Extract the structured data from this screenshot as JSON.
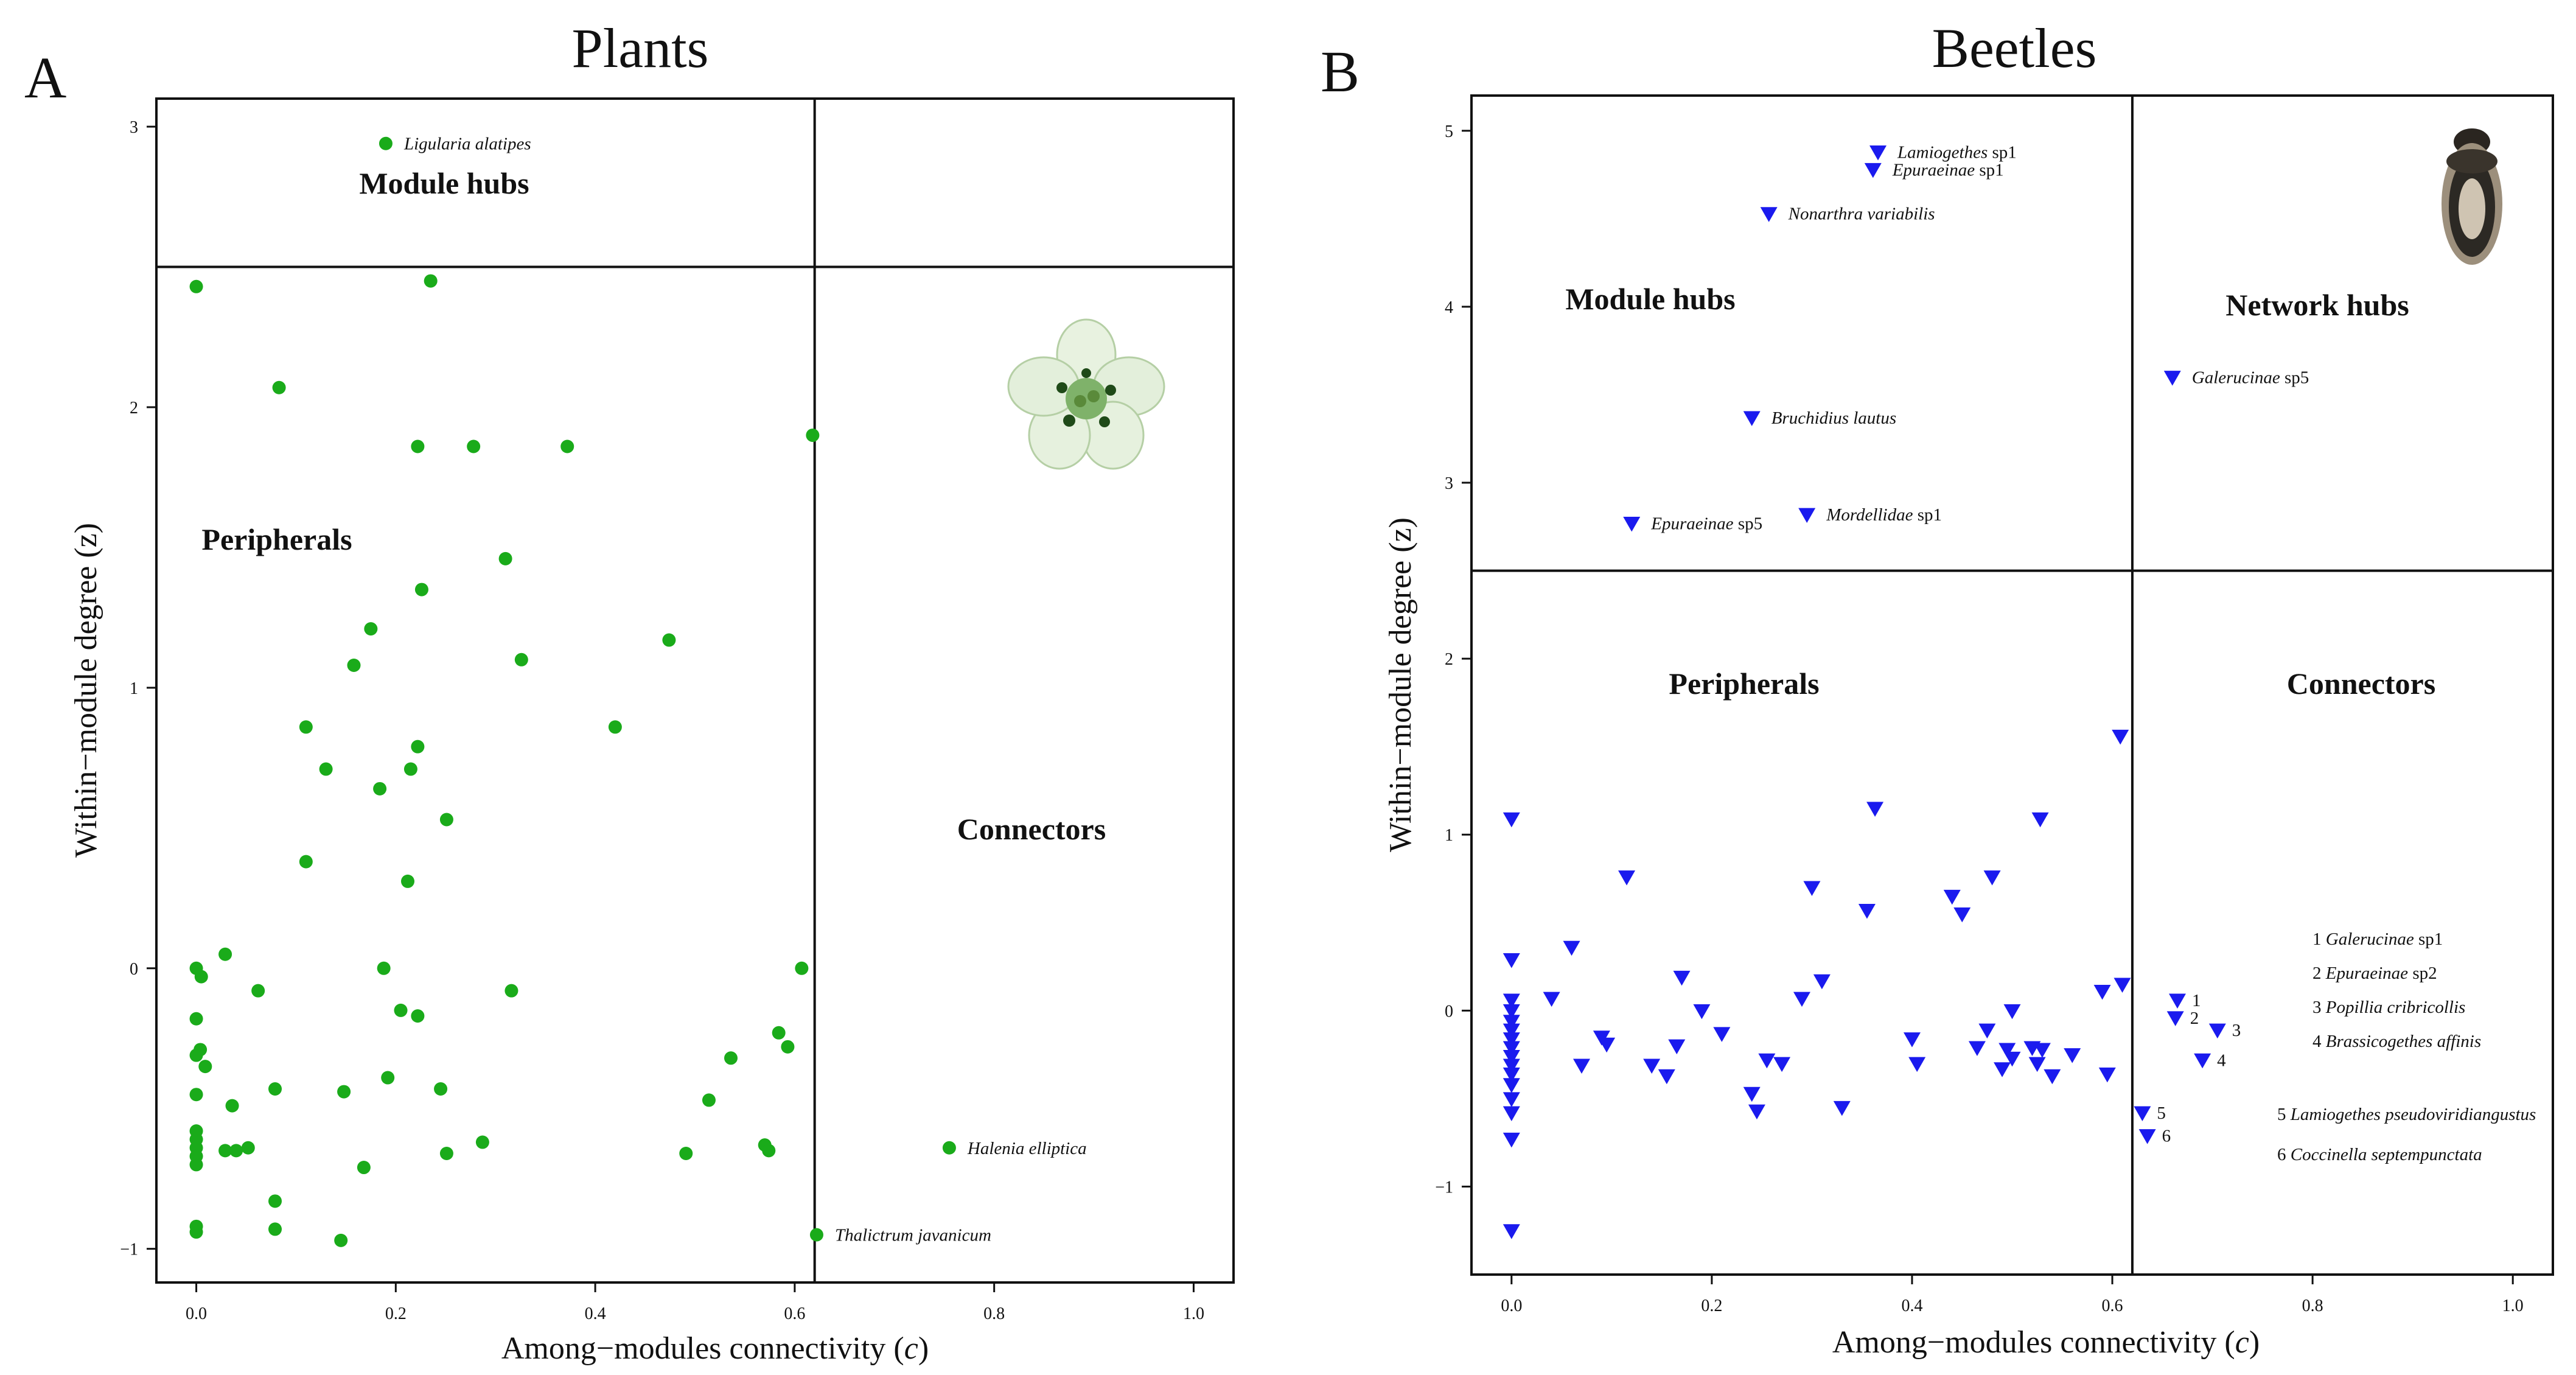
{
  "figure": {
    "xlabel": "Among−modules connectivity (",
    "xlabel_var": "c",
    "xlabel_close": ")",
    "ylabel": "Within−module degree (z)",
    "colors": {
      "plants": "#1aab1a",
      "beetles": "#1a1aee",
      "frame": "#111111"
    }
  },
  "chart_data": [
    {
      "panel": "A",
      "title": "Plants",
      "type": "scatter",
      "marker": "circle",
      "xlim": [
        -0.04,
        1.04
      ],
      "ylim": [
        -1.12,
        3.1
      ],
      "x_ticks": [
        "0.0",
        "0.2",
        "0.4",
        "0.6",
        "0.8",
        "1.0"
      ],
      "y_ticks": [
        "−1",
        "0",
        "1",
        "2",
        "3"
      ],
      "y_tick_values": [
        -1,
        0,
        1,
        2,
        3
      ],
      "x_tick_values": [
        0,
        0.2,
        0.4,
        0.6,
        0.8,
        1.0
      ],
      "threshold_x": 0.62,
      "threshold_y": 2.5,
      "regions": [
        "Module hubs",
        "Peripherals",
        "Connectors"
      ],
      "labeled_points": [
        {
          "name": "Ligularia alatipes",
          "x": 0.19,
          "y": 2.94
        },
        {
          "name": "Halenia elliptica",
          "x": 0.755,
          "y": -0.64
        },
        {
          "name": "Thalictrum javanicum",
          "x": 0.622,
          "y": -0.95
        }
      ],
      "points": [
        [
          0.0,
          2.43
        ],
        [
          0.235,
          2.45
        ],
        [
          0.083,
          2.07
        ],
        [
          0.222,
          1.86
        ],
        [
          0.278,
          1.86
        ],
        [
          0.372,
          1.86
        ],
        [
          0.618,
          1.9
        ],
        [
          0.31,
          1.46
        ],
        [
          0.226,
          1.35
        ],
        [
          0.175,
          1.21
        ],
        [
          0.474,
          1.17
        ],
        [
          0.158,
          1.08
        ],
        [
          0.326,
          1.1
        ],
        [
          0.11,
          0.86
        ],
        [
          0.42,
          0.86
        ],
        [
          0.222,
          0.79
        ],
        [
          0.13,
          0.71
        ],
        [
          0.215,
          0.71
        ],
        [
          0.184,
          0.64
        ],
        [
          0.251,
          0.53
        ],
        [
          0.11,
          0.38
        ],
        [
          0.212,
          0.31
        ],
        [
          0.0,
          0.0
        ],
        [
          0.005,
          -0.03
        ],
        [
          0.029,
          0.05
        ],
        [
          0.188,
          0.0
        ],
        [
          0.607,
          0.0
        ],
        [
          0.062,
          -0.08
        ],
        [
          0.316,
          -0.08
        ],
        [
          0.205,
          -0.15
        ],
        [
          0.222,
          -0.17
        ],
        [
          0.0,
          -0.18
        ],
        [
          0.004,
          -0.29
        ],
        [
          0.0,
          -0.31
        ],
        [
          0.009,
          -0.35
        ],
        [
          0.192,
          -0.39
        ],
        [
          0.0,
          -0.45
        ],
        [
          0.079,
          -0.43
        ],
        [
          0.148,
          -0.44
        ],
        [
          0.245,
          -0.43
        ],
        [
          0.536,
          -0.32
        ],
        [
          0.584,
          -0.23
        ],
        [
          0.593,
          -0.28
        ],
        [
          0.514,
          -0.47
        ],
        [
          0.036,
          -0.49
        ],
        [
          0.0,
          -0.58
        ],
        [
          0.0,
          -0.61
        ],
        [
          0.0,
          -0.64
        ],
        [
          0.0,
          -0.67
        ],
        [
          0.0,
          -0.7
        ],
        [
          0.029,
          -0.65
        ],
        [
          0.04,
          -0.65
        ],
        [
          0.052,
          -0.64
        ],
        [
          0.287,
          -0.62
        ],
        [
          0.57,
          -0.63
        ],
        [
          0.574,
          -0.65
        ],
        [
          0.491,
          -0.66
        ],
        [
          0.251,
          -0.66
        ],
        [
          0.168,
          -0.71
        ],
        [
          0.079,
          -0.83
        ],
        [
          0.0,
          -0.92
        ],
        [
          0.0,
          -0.94
        ],
        [
          0.079,
          -0.93
        ],
        [
          0.145,
          -0.97
        ],
        [
          0.755,
          -0.64
        ],
        [
          0.622,
          -0.95
        ],
        [
          0.19,
          2.94
        ]
      ]
    },
    {
      "panel": "B",
      "title": "Beetles",
      "type": "scatter",
      "marker": "triangle-down",
      "xlim": [
        -0.04,
        1.04
      ],
      "ylim": [
        -1.5,
        5.2
      ],
      "x_ticks": [
        "0.0",
        "0.2",
        "0.4",
        "0.6",
        "0.8",
        "1.0"
      ],
      "y_ticks": [
        "−1",
        "0",
        "1",
        "2",
        "3",
        "4",
        "5"
      ],
      "y_tick_values": [
        -1,
        0,
        1,
        2,
        3,
        4,
        5
      ],
      "x_tick_values": [
        0,
        0.2,
        0.4,
        0.6,
        0.8,
        1.0
      ],
      "threshold_x": 0.62,
      "threshold_y": 2.5,
      "regions": [
        "Module hubs",
        "Network hubs",
        "Peripherals",
        "Connectors"
      ],
      "labeled_points": [
        {
          "name": "Lamiogethes",
          "suffix": " sp1",
          "x": 0.366,
          "y": 4.88
        },
        {
          "name": "Epuraeinae",
          "suffix": " sp1",
          "x": 0.361,
          "y": 4.78
        },
        {
          "name": "Nonarthra variabilis",
          "suffix": "",
          "x": 0.257,
          "y": 4.53
        },
        {
          "name": "Galerucinae",
          "suffix": " sp5",
          "x": 0.66,
          "y": 3.6
        },
        {
          "name": "Bruchidius lautus",
          "suffix": "",
          "x": 0.24,
          "y": 3.37
        },
        {
          "name": "Mordellidae",
          "suffix": " sp1",
          "x": 0.295,
          "y": 2.82
        },
        {
          "name": "Epuraeinae",
          "suffix": " sp5",
          "x": 0.12,
          "y": 2.77
        }
      ],
      "numbered_points": [
        {
          "n": "1",
          "x": 0.665,
          "y": 0.06
        },
        {
          "n": "2",
          "x": 0.663,
          "y": -0.04
        },
        {
          "n": "3",
          "x": 0.705,
          "y": -0.11
        },
        {
          "n": "4",
          "x": 0.69,
          "y": -0.28
        },
        {
          "n": "5",
          "x": 0.63,
          "y": -0.58
        },
        {
          "n": "6",
          "x": 0.635,
          "y": -0.71
        }
      ],
      "legend": [
        {
          "n": "1",
          "name": "Galerucinae",
          "suffix": " sp1"
        },
        {
          "n": "2",
          "name": "Epuraeinae",
          "suffix": " sp2"
        },
        {
          "n": "3",
          "name": "Popillia cribricollis",
          "suffix": ""
        },
        {
          "n": "4",
          "name": "Brassicogethes affinis",
          "suffix": ""
        },
        {
          "n": "5",
          "name": "Lamiogethes pseudoviridiangustus",
          "suffix": ""
        },
        {
          "n": "6",
          "name": "Coccinella septempunctata",
          "suffix": ""
        }
      ],
      "points": [
        [
          0.0,
          1.09
        ],
        [
          0.0,
          0.29
        ],
        [
          0.0,
          0.06
        ],
        [
          0.0,
          0.0
        ],
        [
          0.0,
          -0.06
        ],
        [
          0.0,
          -0.11
        ],
        [
          0.0,
          -0.16
        ],
        [
          0.0,
          -0.21
        ],
        [
          0.0,
          -0.26
        ],
        [
          0.0,
          -0.31
        ],
        [
          0.0,
          -0.36
        ],
        [
          0.0,
          -0.42
        ],
        [
          0.0,
          -0.5
        ],
        [
          0.0,
          -0.58
        ],
        [
          0.0,
          -0.73
        ],
        [
          0.0,
          -1.25
        ],
        [
          0.115,
          0.76
        ],
        [
          0.06,
          0.36
        ],
        [
          0.04,
          0.07
        ],
        [
          0.09,
          -0.15
        ],
        [
          0.095,
          -0.19
        ],
        [
          0.07,
          -0.31
        ],
        [
          0.17,
          0.19
        ],
        [
          0.19,
          0.0
        ],
        [
          0.21,
          -0.13
        ],
        [
          0.165,
          -0.2
        ],
        [
          0.14,
          -0.31
        ],
        [
          0.155,
          -0.37
        ],
        [
          0.24,
          -0.47
        ],
        [
          0.245,
          -0.57
        ],
        [
          0.255,
          -0.28
        ],
        [
          0.27,
          -0.3
        ],
        [
          0.3,
          0.7
        ],
        [
          0.29,
          0.07
        ],
        [
          0.31,
          0.17
        ],
        [
          0.33,
          -0.55
        ],
        [
          0.355,
          0.57
        ],
        [
          0.363,
          1.15
        ],
        [
          0.4,
          -0.16
        ],
        [
          0.405,
          -0.3
        ],
        [
          0.44,
          0.65
        ],
        [
          0.45,
          0.55
        ],
        [
          0.465,
          -0.21
        ],
        [
          0.475,
          -0.11
        ],
        [
          0.48,
          0.76
        ],
        [
          0.5,
          0.0
        ],
        [
          0.49,
          -0.33
        ],
        [
          0.495,
          -0.22
        ],
        [
          0.5,
          -0.27
        ],
        [
          0.52,
          -0.21
        ],
        [
          0.525,
          -0.3
        ],
        [
          0.53,
          -0.22
        ],
        [
          0.54,
          -0.37
        ],
        [
          0.56,
          -0.25
        ],
        [
          0.528,
          1.09
        ],
        [
          0.59,
          0.11
        ],
        [
          0.595,
          -0.36
        ],
        [
          0.61,
          0.15
        ],
        [
          0.608,
          1.56
        ]
      ]
    }
  ]
}
